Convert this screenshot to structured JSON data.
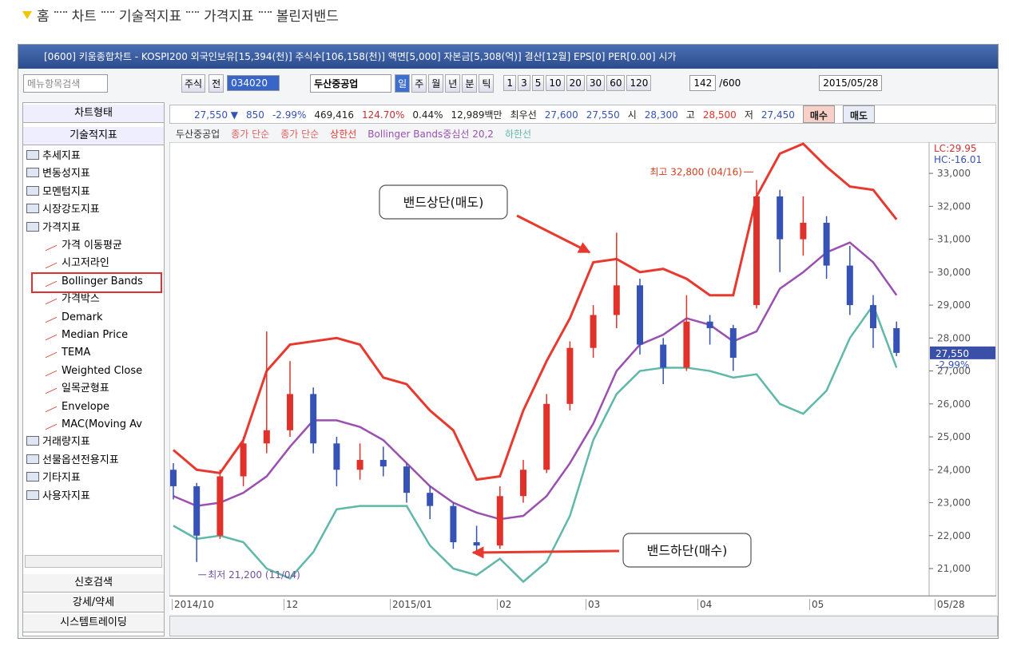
{
  "breadcrumb": [
    "홈",
    "차트",
    "기술적지표",
    "가격지표",
    "볼린저밴드"
  ],
  "window_title": "[0600] 키움종합차트 - KOSPI200 외국인보유[15,394(천)] 주식수[106,158(천)] 액면[5,000] 자본금[5,308(억)] 결산[12월] EPS[0] PER[0.00] 시가",
  "toolbar": {
    "search": "메뉴항목검색",
    "market": "주식",
    "scope": "전",
    "code": "034020",
    "name": "두산중공업",
    "periods": [
      "일",
      "주",
      "월",
      "년",
      "분",
      "틱"
    ],
    "intervals": [
      "1",
      "3",
      "5",
      "10",
      "20",
      "30",
      "60",
      "120"
    ],
    "count": "142",
    "max": "/600",
    "date": "2015/05/28"
  },
  "quote": {
    "price": "27,550 ▼",
    "change": "850",
    "rate": "-2.99%",
    "volume": "469,416",
    "volume_rate": "124.70%",
    "turnover": "0.44%",
    "amount": "12,989백만",
    "best_label": "최우선",
    "ask": "27,600",
    "bid": "27,550",
    "open_label": "시",
    "open": "28,300",
    "high_label": "고",
    "high": "28,500",
    "low_label": "저",
    "low": "27,450",
    "buy": "매수",
    "sell": "매도"
  },
  "sidebar": {
    "tabs": [
      "차트형태",
      "기술적지표"
    ],
    "tree_top": [
      "추세지표",
      "변동성지표",
      "모멘텀지표",
      "시장강도지표",
      "가격지표"
    ],
    "tree_children": [
      "가격 이동평균",
      "시고저라인",
      "Bollinger Bands",
      "가격박스",
      "Demark",
      "Median Price",
      "TEMA",
      "Weighted Close",
      "일목균형표",
      "Envelope",
      "MAC(Moving Av"
    ],
    "tree_bottom": [
      "거래량지표",
      "선물옵션전용지표",
      "기타지표",
      "사용자지표"
    ],
    "buttons": [
      "신호검색",
      "강세/약세",
      "시스템트레이딩"
    ]
  },
  "chart_data": {
    "type": "candlestick",
    "legend": [
      "두산중공업",
      "종가 단순",
      "종가 단순"
    ],
    "candles": {
      "open": [
        24000,
        23500,
        22000,
        23800,
        24800,
        25200,
        26300,
        24800,
        24000,
        24300,
        24100,
        23300,
        22900,
        21800,
        21700,
        23200,
        24000,
        26000,
        27700,
        28700,
        29600,
        27800,
        27100,
        28500,
        28300,
        29000,
        32300,
        31000,
        31500,
        30200,
        29000,
        28300
      ],
      "high": [
        24200,
        23600,
        24000,
        25000,
        28200,
        27300,
        26500,
        25000,
        24800,
        24700,
        24200,
        23500,
        23000,
        22300,
        23500,
        24300,
        26300,
        27900,
        29000,
        31200,
        29800,
        28000,
        29300,
        28700,
        28400,
        32800,
        32500,
        32300,
        31700,
        30800,
        29300,
        28500
      ],
      "low": [
        23100,
        21200,
        21900,
        23500,
        24500,
        25000,
        24500,
        23500,
        23700,
        23800,
        23000,
        22500,
        21600,
        21500,
        21600,
        23000,
        23900,
        25800,
        27400,
        28300,
        27500,
        26600,
        27000,
        27800,
        27000,
        28900,
        30000,
        30500,
        29800,
        28700,
        27700,
        27450
      ],
      "close": [
        23500,
        22000,
        23800,
        24800,
        25200,
        26300,
        24800,
        24000,
        24300,
        24100,
        23300,
        22900,
        21800,
        21700,
        23200,
        24000,
        26000,
        27700,
        28700,
        29600,
        27800,
        27100,
        28500,
        28300,
        27400,
        32300,
        31000,
        31500,
        30200,
        29000,
        28300,
        27550
      ]
    },
    "up_color": "#e0322a",
    "down_color": "#3552b4",
    "series": [
      {
        "name": "상한선",
        "color": "#e8392f",
        "values": [
          24600,
          24000,
          23900,
          24900,
          27000,
          27800,
          27900,
          28000,
          27800,
          26800,
          26600,
          25800,
          25200,
          23700,
          23800,
          25800,
          27300,
          28600,
          30300,
          30400,
          30000,
          30100,
          29800,
          29300,
          29300,
          32300,
          33600,
          33900,
          33200,
          32600,
          32500,
          31600
        ]
      },
      {
        "name": "Bollinger Bands중심선 20,2",
        "color": "#9b4fb0",
        "values": [
          23200,
          22900,
          23000,
          23300,
          23800,
          24700,
          25500,
          25500,
          25300,
          24900,
          24200,
          23500,
          23000,
          22700,
          22500,
          22600,
          23200,
          24200,
          25400,
          27000,
          27800,
          28100,
          28600,
          28400,
          27900,
          28200,
          29500,
          30000,
          30600,
          30900,
          30300,
          29300
        ]
      },
      {
        "name": "하한선",
        "color": "#5fb8a8",
        "values": [
          22300,
          21900,
          22000,
          21800,
          21000,
          20700,
          21500,
          22800,
          22900,
          22900,
          22900,
          21700,
          21000,
          20800,
          21300,
          20600,
          21200,
          22600,
          24900,
          26300,
          27000,
          27100,
          27100,
          27000,
          26800,
          26900,
          26000,
          25700,
          26400,
          28000,
          29000,
          27100
        ]
      }
    ],
    "ylim": [
      20200,
      33900
    ],
    "yticks": [
      {
        "value": 21000,
        "label": "21,000"
      },
      {
        "value": 22000,
        "label": "22,000"
      },
      {
        "value": 23000,
        "label": "23,000"
      },
      {
        "value": 24000,
        "label": "24,000"
      },
      {
        "value": 25000,
        "label": "25,000"
      },
      {
        "value": 26000,
        "label": "26,000"
      },
      {
        "value": 27000,
        "label": "27,000"
      },
      {
        "value": 28000,
        "label": "28,000"
      },
      {
        "value": 29000,
        "label": "29,000"
      },
      {
        "value": 30000,
        "label": "30,000"
      },
      {
        "value": 31000,
        "label": "31,000"
      },
      {
        "value": 32000,
        "label": "32,000"
      },
      {
        "value": 33000,
        "label": "33,000"
      }
    ],
    "xlabels": [
      "2014/10",
      "12",
      "2015/01",
      "02",
      "03",
      "04",
      "05",
      "05/28"
    ],
    "high_note": "최고 32,800 (04/16)",
    "low_note": "최저 21,200 (11/04)",
    "upper_callout": "밴드상단(매도)",
    "lower_callout": "밴드하단(매수)",
    "lc": "LC:29.95",
    "hc": "HC:-16.01",
    "last_price": "27,550",
    "last_rate": "-2.99%"
  }
}
